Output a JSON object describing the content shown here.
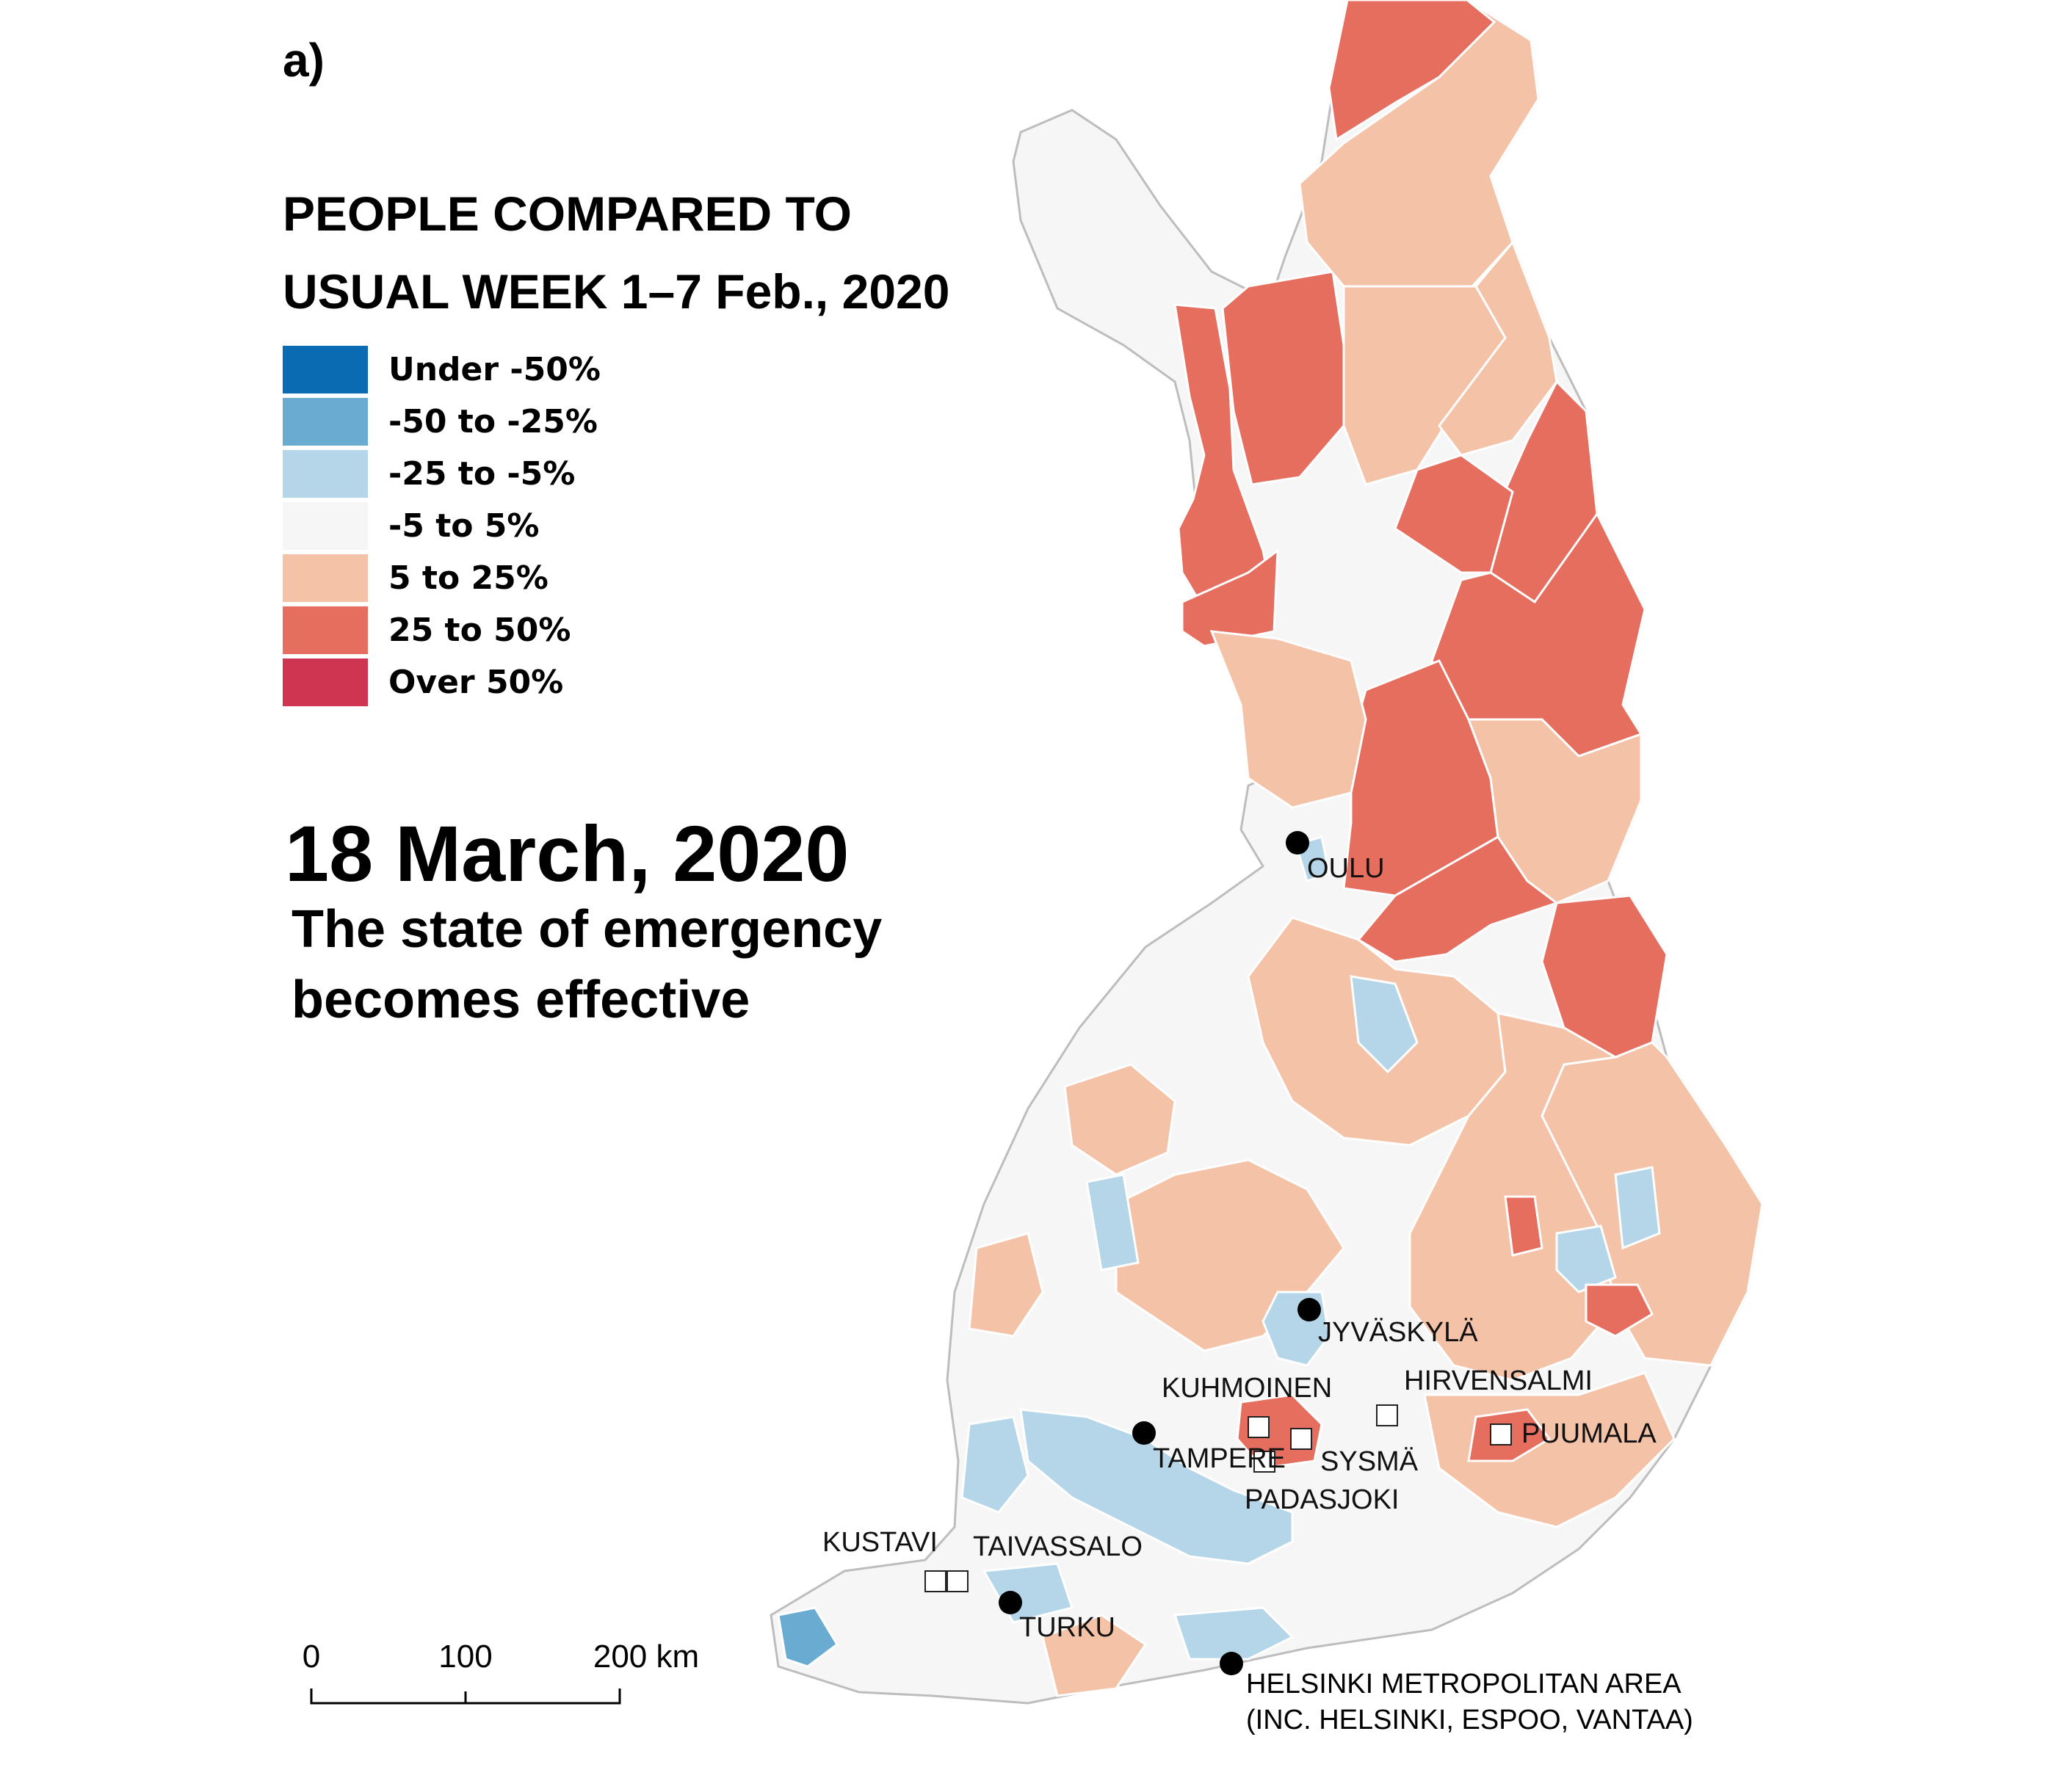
{
  "panel_label": "a)",
  "legend": {
    "title_line1": "PEOPLE COMPARED TO",
    "title_line2": "USUAL WEEK 1–7 Feb., 2020",
    "classes": [
      {
        "label": "Under -50%",
        "color": "#0a6ab2"
      },
      {
        "label": "-50 to -25%",
        "color": "#6aabd2"
      },
      {
        "label": "-25 to -5%",
        "color": "#b5d6e8"
      },
      {
        "label": "-5 to 5%",
        "color": "#f6f6f6"
      },
      {
        "label": "5 to 25%",
        "color": "#f4c2a7"
      },
      {
        "label": "25 to 50%",
        "color": "#e56e5f"
      },
      {
        "label": "Over 50%",
        "color": "#cf3450"
      }
    ]
  },
  "date": "18 March, 2020",
  "subtitle": {
    "line1": "The state of emergency",
    "line2": "becomes effective"
  },
  "cities": {
    "oulu": "OULU",
    "jyvaskyla": "JYVÄSKYLÄ",
    "tampere": "TAMPERE",
    "turku": "TURKU",
    "helsinki": "HELSINKI METROPOLITAN AREA",
    "helsinki_note": "(INC. HELSINKI, ESPOO, VANTAA)"
  },
  "municipalities": {
    "kuhmoinen": "KUHMOINEN",
    "hirvensalmi": "HIRVENSALMI",
    "puumala": "PUUMALA",
    "sysma": "SYSMÄ",
    "padasjoki": "PADASJOKI",
    "kustavi": "KUSTAVI",
    "taivassalo": "TAIVASSALO"
  },
  "scale_bar": {
    "ticks": [
      "0",
      "100",
      "200 km"
    ]
  }
}
